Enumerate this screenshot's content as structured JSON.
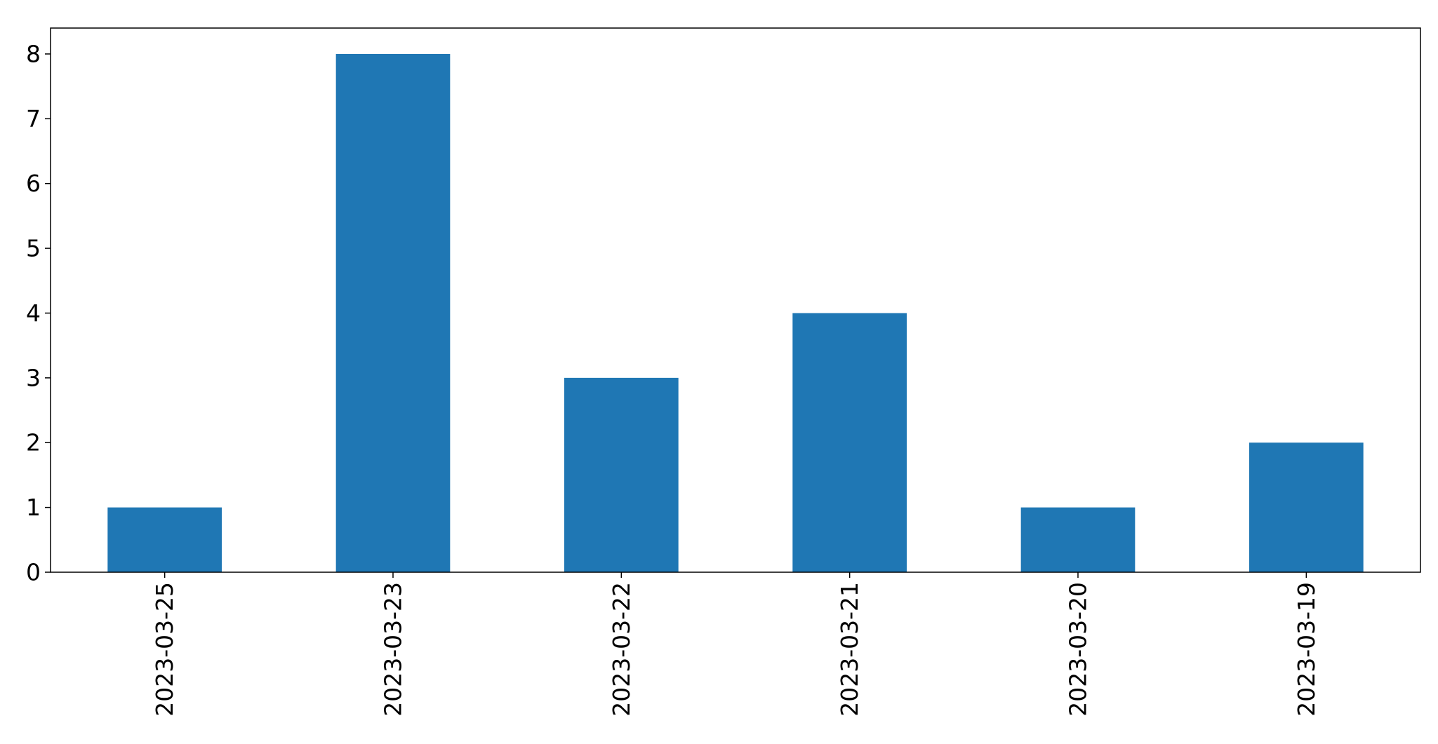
{
  "chart_data": {
    "type": "bar",
    "categories": [
      "2023-03-25",
      "2023-03-23",
      "2023-03-22",
      "2023-03-21",
      "2023-03-20",
      "2023-03-19"
    ],
    "series": [
      {
        "values": [
          1,
          8,
          3,
          4,
          1,
          2
        ],
        "color": "#1f77b4"
      }
    ],
    "title": "",
    "xlabel": "",
    "ylabel": "",
    "ylim": [
      0,
      8.4
    ],
    "yticks": [
      0,
      1,
      2,
      3,
      4,
      5,
      6,
      7,
      8
    ],
    "grid": false,
    "legend": "none"
  }
}
